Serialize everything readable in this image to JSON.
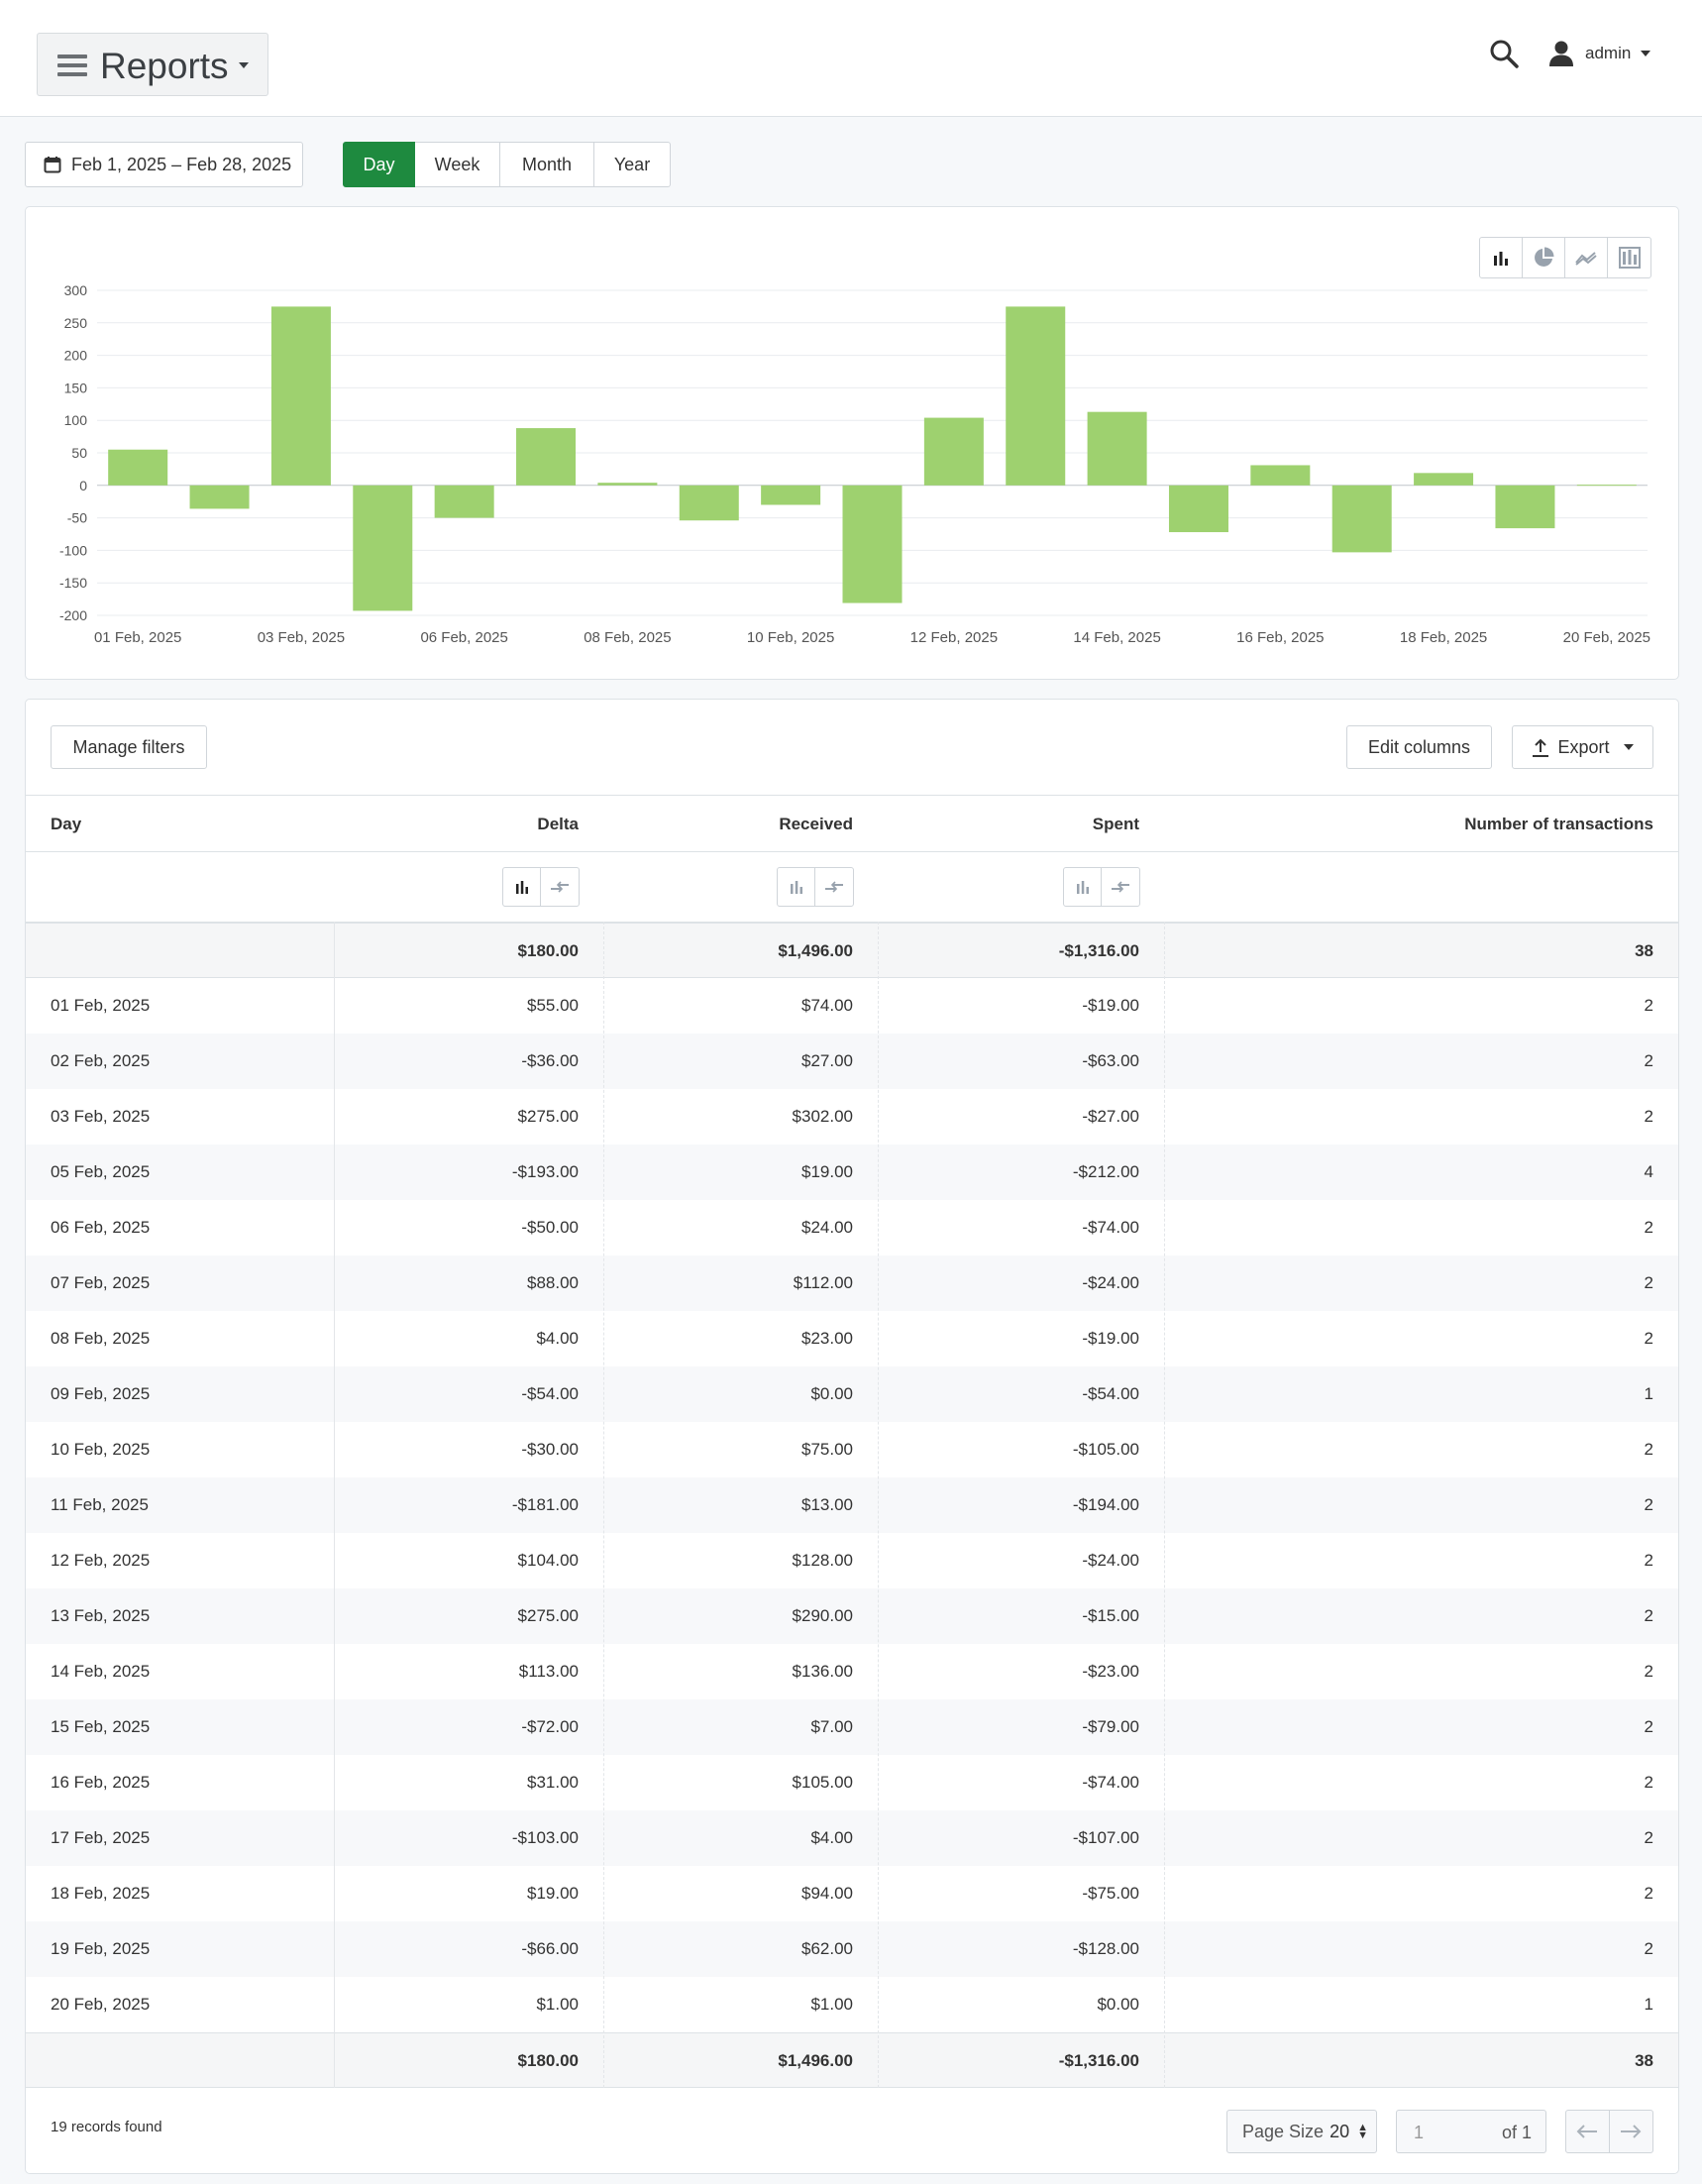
{
  "header": {
    "title": "Reports",
    "user": "admin"
  },
  "filters": {
    "date_range": "Feb 1, 2025 – Feb 28, 2025",
    "periods": [
      "Day",
      "Week",
      "Month",
      "Year"
    ],
    "active_period": "Day"
  },
  "chart_controls": {
    "types": [
      "bar-chart-icon",
      "pie-chart-icon",
      "line-chart-icon",
      "stacked-chart-icon"
    ],
    "active": "bar-chart-icon"
  },
  "chart_data": {
    "type": "bar",
    "title": "",
    "xlabel": "",
    "ylabel": "",
    "ylim": [
      -200,
      300
    ],
    "yticks": [
      300,
      250,
      200,
      150,
      100,
      50,
      0,
      -50,
      -100,
      -150,
      -200
    ],
    "x_tick_labels": [
      "01 Feb, 2025",
      "03 Feb, 2025",
      "06 Feb, 2025",
      "08 Feb, 2025",
      "10 Feb, 2025",
      "12 Feb, 2025",
      "14 Feb, 2025",
      "16 Feb, 2025",
      "18 Feb, 2025",
      "20 Feb, 2025"
    ],
    "categories": [
      "01 Feb, 2025",
      "02 Feb, 2025",
      "03 Feb, 2025",
      "05 Feb, 2025",
      "06 Feb, 2025",
      "07 Feb, 2025",
      "08 Feb, 2025",
      "09 Feb, 2025",
      "10 Feb, 2025",
      "11 Feb, 2025",
      "12 Feb, 2025",
      "13 Feb, 2025",
      "14 Feb, 2025",
      "15 Feb, 2025",
      "16 Feb, 2025",
      "17 Feb, 2025",
      "18 Feb, 2025",
      "19 Feb, 2025",
      "20 Feb, 2025"
    ],
    "values": [
      55,
      -36,
      275,
      -193,
      -50,
      88,
      4,
      -54,
      -30,
      -181,
      104,
      275,
      113,
      -72,
      31,
      -103,
      19,
      -66,
      1
    ],
    "grid": true,
    "color": "#9ed16f"
  },
  "toolbar": {
    "manage_filters": "Manage filters",
    "edit_columns": "Edit columns",
    "export": "Export"
  },
  "table": {
    "columns": [
      "Day",
      "Delta",
      "Received",
      "Spent",
      "Number of transactions"
    ],
    "totals": {
      "delta": "$180.00",
      "received": "$1,496.00",
      "spent": "-$1,316.00",
      "count": "38"
    },
    "rows": [
      {
        "day": "01 Feb, 2025",
        "delta": "$55.00",
        "received": "$74.00",
        "spent": "-$19.00",
        "count": "2"
      },
      {
        "day": "02 Feb, 2025",
        "delta": "-$36.00",
        "received": "$27.00",
        "spent": "-$63.00",
        "count": "2"
      },
      {
        "day": "03 Feb, 2025",
        "delta": "$275.00",
        "received": "$302.00",
        "spent": "-$27.00",
        "count": "2"
      },
      {
        "day": "05 Feb, 2025",
        "delta": "-$193.00",
        "received": "$19.00",
        "spent": "-$212.00",
        "count": "4"
      },
      {
        "day": "06 Feb, 2025",
        "delta": "-$50.00",
        "received": "$24.00",
        "spent": "-$74.00",
        "count": "2"
      },
      {
        "day": "07 Feb, 2025",
        "delta": "$88.00",
        "received": "$112.00",
        "spent": "-$24.00",
        "count": "2"
      },
      {
        "day": "08 Feb, 2025",
        "delta": "$4.00",
        "received": "$23.00",
        "spent": "-$19.00",
        "count": "2"
      },
      {
        "day": "09 Feb, 2025",
        "delta": "-$54.00",
        "received": "$0.00",
        "spent": "-$54.00",
        "count": "1"
      },
      {
        "day": "10 Feb, 2025",
        "delta": "-$30.00",
        "received": "$75.00",
        "spent": "-$105.00",
        "count": "2"
      },
      {
        "day": "11 Feb, 2025",
        "delta": "-$181.00",
        "received": "$13.00",
        "spent": "-$194.00",
        "count": "2"
      },
      {
        "day": "12 Feb, 2025",
        "delta": "$104.00",
        "received": "$128.00",
        "spent": "-$24.00",
        "count": "2"
      },
      {
        "day": "13 Feb, 2025",
        "delta": "$275.00",
        "received": "$290.00",
        "spent": "-$15.00",
        "count": "2"
      },
      {
        "day": "14 Feb, 2025",
        "delta": "$113.00",
        "received": "$136.00",
        "spent": "-$23.00",
        "count": "2"
      },
      {
        "day": "15 Feb, 2025",
        "delta": "-$72.00",
        "received": "$7.00",
        "spent": "-$79.00",
        "count": "2"
      },
      {
        "day": "16 Feb, 2025",
        "delta": "$31.00",
        "received": "$105.00",
        "spent": "-$74.00",
        "count": "2"
      },
      {
        "day": "17 Feb, 2025",
        "delta": "-$103.00",
        "received": "$4.00",
        "spent": "-$107.00",
        "count": "2"
      },
      {
        "day": "18 Feb, 2025",
        "delta": "$19.00",
        "received": "$94.00",
        "spent": "-$75.00",
        "count": "2"
      },
      {
        "day": "19 Feb, 2025",
        "delta": "-$66.00",
        "received": "$62.00",
        "spent": "-$128.00",
        "count": "2"
      },
      {
        "day": "20 Feb, 2025",
        "delta": "$1.00",
        "received": "$1.00",
        "spent": "$0.00",
        "count": "1"
      }
    ]
  },
  "footer": {
    "records": "19 records found",
    "page_size_label": "Page Size",
    "page_size": "20",
    "page_current": "1",
    "page_of": "of 1"
  }
}
